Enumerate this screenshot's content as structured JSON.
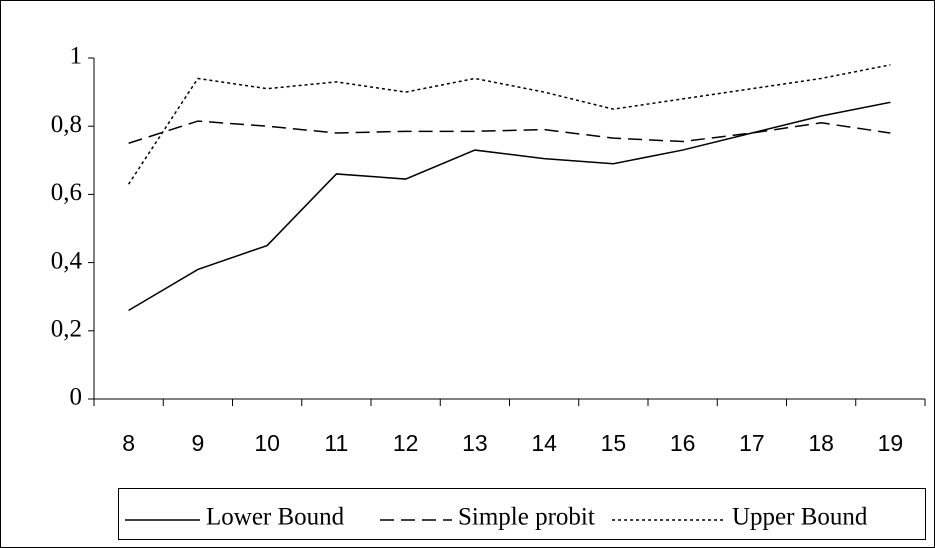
{
  "chart_data": {
    "type": "line",
    "categories": [
      "8",
      "9",
      "10",
      "11",
      "12",
      "13",
      "14",
      "15",
      "16",
      "17",
      "18",
      "19"
    ],
    "series": [
      {
        "name": "Lower Bound",
        "color": "#000000",
        "dash": "solid",
        "values": [
          0.26,
          0.38,
          0.45,
          0.66,
          0.645,
          0.73,
          0.705,
          0.69,
          0.73,
          0.78,
          0.83,
          0.87
        ]
      },
      {
        "name": "Simple probit",
        "color": "#000000",
        "dash": "dashed",
        "values": [
          0.75,
          0.815,
          0.8,
          0.78,
          0.785,
          0.785,
          0.79,
          0.765,
          0.755,
          0.78,
          0.81,
          0.78
        ]
      },
      {
        "name": "Upper Bound",
        "color": "#000000",
        "dash": "dotted",
        "values": [
          0.63,
          0.94,
          0.91,
          0.93,
          0.9,
          0.94,
          0.9,
          0.85,
          0.88,
          0.91,
          0.94,
          0.98
        ]
      }
    ],
    "ylim": [
      0,
      1
    ],
    "yticks": [
      0,
      {
        "value": 0.2,
        "label": "0,2"
      },
      {
        "value": 0.4,
        "label": "0,4"
      },
      {
        "value": 0.6,
        "label": "0,6"
      },
      {
        "value": 0.8,
        "label": "0,8"
      },
      1
    ],
    "grid": false,
    "legend": "bottom"
  }
}
